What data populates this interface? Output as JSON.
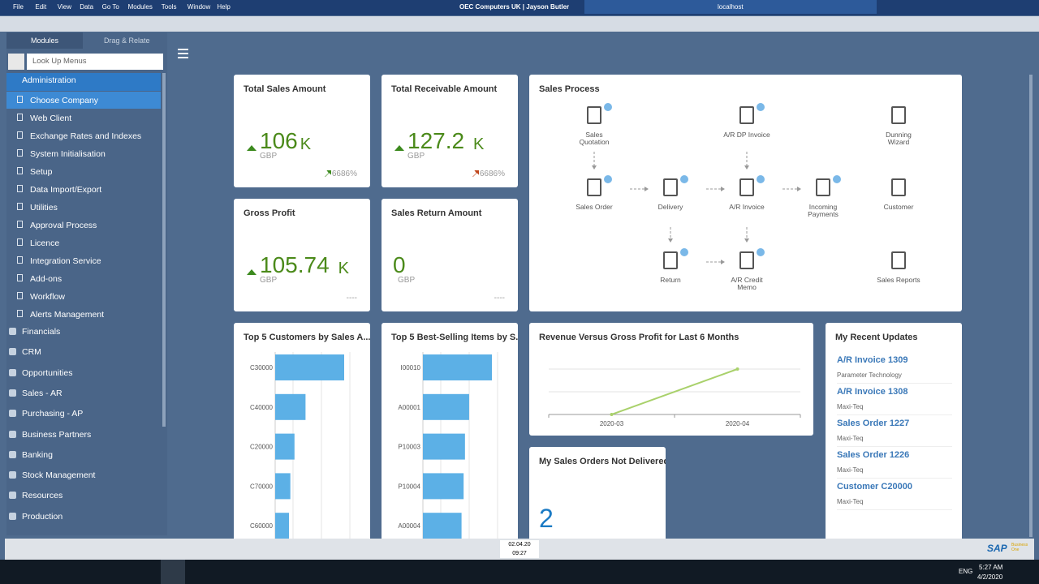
{
  "menu": [
    "File",
    "Edit",
    "View",
    "Data",
    "Go To",
    "Modules",
    "Tools",
    "Window",
    "Help"
  ],
  "window_title": "OEC Computers UK | Jayson Butler",
  "server": "localhost",
  "sidebar": {
    "tabs": [
      "Modules",
      "Drag & Relate"
    ],
    "search_placeholder": "Look Up Menus",
    "expanded": {
      "label": "Administration",
      "items": [
        "Choose Company",
        "Web Client",
        "Exchange Rates and Indexes",
        "System Initialisation",
        "Setup",
        "Data Import/Export",
        "Utilities",
        "Approval Process",
        "Licence",
        "Integration Service",
        "Add-ons",
        "Workflow",
        "Alerts Management"
      ]
    },
    "modules": [
      "Financials",
      "CRM",
      "Opportunities",
      "Sales - AR",
      "Purchasing - AP",
      "Business Partners",
      "Banking",
      "Stock Management",
      "Resources",
      "Production"
    ]
  },
  "kpis": [
    {
      "title": "Total Sales Amount",
      "value": 106,
      "unit": "K",
      "currency": "GBP",
      "change": "6686%",
      "trend_color": "#3c8a1e"
    },
    {
      "title": "Total Receivable Amount",
      "value": 127.2,
      "unit": "K",
      "currency": "GBP",
      "change": "6686%",
      "trend_color": "#c0461b"
    },
    {
      "title": "Gross Profit",
      "value": 105.74,
      "unit": "K",
      "currency": "GBP",
      "change": "----"
    },
    {
      "title": "Sales Return Amount",
      "value": 0,
      "currency": "GBP",
      "change": "----"
    }
  ],
  "process": {
    "title": "Sales Process",
    "nodes": [
      {
        "label": [
          "Sales",
          "Quotation"
        ]
      },
      {
        "label": [
          "A/R DP Invoice"
        ]
      },
      {
        "label": [
          "Dunning",
          "Wizard"
        ]
      },
      {
        "label": [
          "Sales Order"
        ]
      },
      {
        "label": [
          "Delivery"
        ]
      },
      {
        "label": [
          "A/R Invoice"
        ]
      },
      {
        "label": [
          "Incoming",
          "Payments"
        ]
      },
      {
        "label": [
          "Customer"
        ]
      },
      {
        "label": [
          "Return"
        ]
      },
      {
        "label": [
          "A/R Credit",
          "Memo"
        ]
      },
      {
        "label": [
          "Sales Reports"
        ]
      }
    ]
  },
  "bar_charts": [
    {
      "type": "hbar",
      "title": "Top 5 Customers by Sales A...",
      "categories": [
        "C30000",
        "C40000",
        "C20000",
        "C70000",
        "C60000"
      ],
      "values": [
        100,
        44,
        28,
        22,
        20
      ],
      "xlim": [
        0,
        100
      ],
      "color": "#5cb0e6"
    },
    {
      "type": "hbar",
      "title": "Top 5 Best-Selling Items by S...",
      "categories": [
        "I00010",
        "A00001",
        "P10003",
        "P10004",
        "A00004"
      ],
      "values": [
        100,
        67,
        61,
        59,
        56
      ],
      "xlim": [
        0,
        100
      ],
      "color": "#5cb0e6"
    }
  ],
  "line_chart": {
    "type": "line",
    "title": "Revenue Versus Gross Profit for Last 6 Months",
    "categories": [
      "2020-03",
      "2020-04"
    ],
    "values": [
      0,
      106
    ],
    "ylim": [
      0,
      106
    ],
    "color": "#a9d16b"
  },
  "not_delivered": {
    "title": "My Sales Orders Not Delivered",
    "value": 2
  },
  "recent": {
    "title": "My Recent Updates",
    "items": [
      {
        "title": "A/R Invoice 1309",
        "subtitle": "Parameter Technology"
      },
      {
        "title": "A/R Invoice 1308",
        "subtitle": "Maxi-Teq"
      },
      {
        "title": "Sales Order 1227",
        "subtitle": "Maxi-Teq"
      },
      {
        "title": "Sales Order 1226",
        "subtitle": "Maxi-Teq"
      },
      {
        "title": "Customer C20000",
        "subtitle": "Maxi-Teq"
      }
    ]
  },
  "status": {
    "date": "02.04.20",
    "time": "09:27"
  },
  "logo": {
    "brand": "SAP",
    "product": "Business One"
  },
  "taskbar": {
    "lang": "ENG",
    "clock": "5:27 AM",
    "date": "4/2/2020"
  }
}
